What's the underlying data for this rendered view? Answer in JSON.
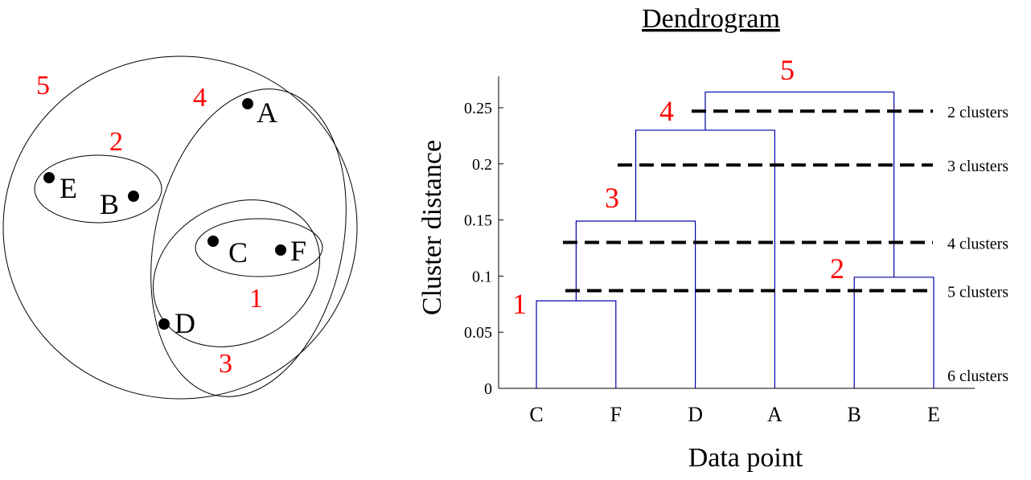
{
  "accent": {
    "step_label": "#ff0000",
    "dendrogram_line": "#0000aa",
    "cut_line": "#000000",
    "outline": "#000000"
  },
  "venn": {
    "points": [
      {
        "id": "A",
        "label": "A"
      },
      {
        "id": "B",
        "label": "B"
      },
      {
        "id": "C",
        "label": "C"
      },
      {
        "id": "D",
        "label": "D"
      },
      {
        "id": "E",
        "label": "E"
      },
      {
        "id": "F",
        "label": "F"
      }
    ],
    "step_labels": [
      "1",
      "2",
      "3",
      "4",
      "5"
    ]
  },
  "dendrogram": {
    "title": "Dendrogram",
    "xlabel": "Data point",
    "ylabel": "Cluster distance",
    "chart_data": {
      "type": "dendrogram",
      "leaf_order": [
        "C",
        "F",
        "D",
        "A",
        "B",
        "E"
      ],
      "ylim": [
        0,
        0.27
      ],
      "yticks": [
        0,
        0.05,
        0.1,
        0.15,
        0.2,
        0.25
      ],
      "ytick_labels": [
        "0",
        "0.05",
        "0.1",
        "0.15",
        "0.2",
        "0.25"
      ],
      "merges": [
        {
          "step": "1",
          "left": "C",
          "right": "F",
          "height": 0.078
        },
        {
          "step": "2",
          "left": "B",
          "right": "E",
          "height": 0.099
        },
        {
          "step": "3",
          "left": "CF",
          "right": "D",
          "height": 0.149
        },
        {
          "step": "4",
          "left": "CFD",
          "right": "A",
          "height": 0.23
        },
        {
          "step": "5",
          "left": "CFDA",
          "right": "BE",
          "height": 0.264
        }
      ],
      "cuts": [
        {
          "label": "2 clusters",
          "height": 0.247
        },
        {
          "label": "3 clusters",
          "height": 0.199
        },
        {
          "label": "4 clusters",
          "height": 0.13
        },
        {
          "label": "5 clusters",
          "height": 0.087
        },
        {
          "label": "6 clusters",
          "height": null
        }
      ]
    }
  }
}
